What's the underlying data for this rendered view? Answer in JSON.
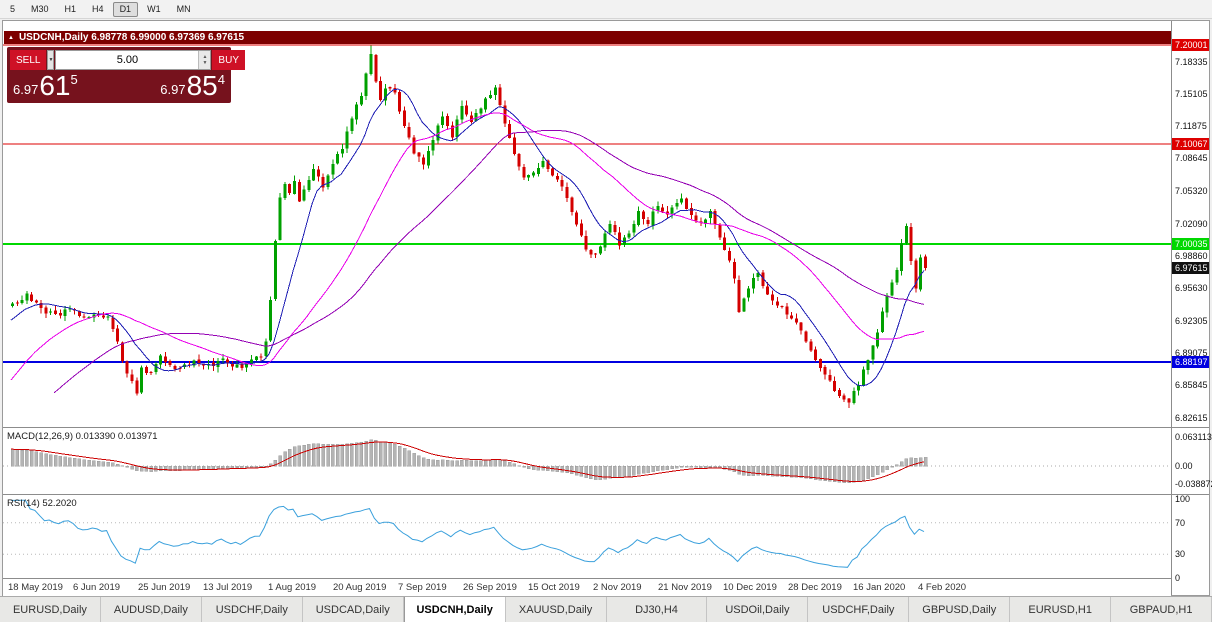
{
  "toolbar": {
    "timeframes": [
      "5",
      "M30",
      "H1",
      "H4",
      "D1",
      "W1",
      "MN"
    ],
    "active": "D1"
  },
  "chart": {
    "title_line": "USDCNH,Daily  6.98778 6.99000 6.97369 6.97615",
    "symbol": "USDCNH,Daily",
    "trade_panel": {
      "sell_label": "SELL",
      "buy_label": "BUY",
      "volume": "5.00",
      "sell_price": {
        "prefix": "6.97",
        "big": "61",
        "sup": "5"
      },
      "buy_price": {
        "prefix": "6.97",
        "big": "85",
        "sup": "4"
      }
    },
    "levels": [
      {
        "label": "7.20001",
        "value": 7.20001,
        "color": "#dd0000",
        "width": 1
      },
      {
        "label": "7.10067",
        "value": 7.10067,
        "color": "#dd0000",
        "width": 1
      },
      {
        "label": "7.00035",
        "value": 7.00035,
        "color": "#00d800",
        "width": 2
      },
      {
        "label": "6.88197",
        "value": 6.88197,
        "color": "#0000e0",
        "width": 2
      }
    ],
    "current_price": {
      "label": "6.97615",
      "value": 6.97615,
      "badge_color": "#101010"
    },
    "y_axis": [
      "7.18335",
      "7.15105",
      "7.11875",
      "7.08645",
      "7.05320",
      "7.02090",
      "6.98860",
      "6.95630",
      "6.92305",
      "6.89075",
      "6.85845",
      "6.82615"
    ],
    "x_axis": [
      "18 May 2019",
      "6 Jun 2019",
      "25 Jun 2019",
      "13 Jul 2019",
      "1 Aug 2019",
      "20 Aug 2019",
      "7 Sep 2019",
      "26 Sep 2019",
      "15 Oct 2019",
      "2 Nov 2019",
      "21 Nov 2019",
      "10 Dec 2019",
      "28 Dec 2019",
      "16 Jan 2020",
      "4 Feb 2020"
    ]
  },
  "macd": {
    "title": "MACD(12,26,9) 0.013390 0.013971",
    "axis": [
      "0.063113",
      "0.00",
      "-0.038872"
    ]
  },
  "rsi": {
    "title": "RSI(14) 52.2020",
    "axis": [
      "100",
      "70",
      "30",
      "0"
    ]
  },
  "tabs": {
    "items": [
      "EURUSD,Daily",
      "AUDUSD,Daily",
      "USDCHF,Daily",
      "USDCAD,Daily",
      "USDCNH,Daily",
      "XAUUSD,Daily",
      "DJ30,H4",
      "USDOil,Daily",
      "USDCHF,Daily",
      "GBPUSD,Daily",
      "EURUSD,H1",
      "GBPAUD,H1"
    ],
    "active_index": 4
  },
  "chart_data": {
    "type": "candlestick",
    "symbol": "USDCNH",
    "timeframe": "Daily",
    "ohlc_current": {
      "open": 6.98778,
      "high": 6.99,
      "low": 6.97369,
      "close": 6.97615
    },
    "bars_visible": 192,
    "prehistory_bars": 40,
    "noise": 0.003,
    "up_color": "#00a000",
    "down_color": "#d40000",
    "close_path_anchors": [
      [
        -40,
        6.725
      ],
      [
        -28,
        6.77
      ],
      [
        -16,
        6.862
      ],
      [
        -6,
        6.92
      ],
      [
        0,
        6.941
      ],
      [
        3,
        6.949
      ],
      [
        6,
        6.935
      ],
      [
        9,
        6.929
      ],
      [
        12,
        6.936
      ],
      [
        14,
        6.926
      ],
      [
        17,
        6.931
      ],
      [
        20,
        6.927
      ],
      [
        22,
        6.903
      ],
      [
        24,
        6.869
      ],
      [
        26,
        6.852
      ],
      [
        27,
        6.876
      ],
      [
        29,
        6.871
      ],
      [
        31,
        6.886
      ],
      [
        34,
        6.877
      ],
      [
        38,
        6.883
      ],
      [
        41,
        6.878
      ],
      [
        44,
        6.884
      ],
      [
        47,
        6.877
      ],
      [
        50,
        6.883
      ],
      [
        52,
        6.889
      ],
      [
        53,
        6.902
      ],
      [
        54,
        6.944
      ],
      [
        55,
        7.002
      ],
      [
        56,
        7.046
      ],
      [
        57,
        7.061
      ],
      [
        58,
        7.049
      ],
      [
        59,
        7.063
      ],
      [
        60,
        7.041
      ],
      [
        61,
        7.056
      ],
      [
        63,
        7.073
      ],
      [
        65,
        7.058
      ],
      [
        67,
        7.081
      ],
      [
        69,
        7.096
      ],
      [
        71,
        7.126
      ],
      [
        73,
        7.149
      ],
      [
        75,
        7.189
      ],
      [
        76,
        7.166
      ],
      [
        77,
        7.146
      ],
      [
        78,
        7.159
      ],
      [
        80,
        7.151
      ],
      [
        82,
        7.119
      ],
      [
        84,
        7.092
      ],
      [
        86,
        7.079
      ],
      [
        88,
        7.106
      ],
      [
        90,
        7.129
      ],
      [
        92,
        7.109
      ],
      [
        94,
        7.136
      ],
      [
        96,
        7.124
      ],
      [
        98,
        7.139
      ],
      [
        100,
        7.151
      ],
      [
        101,
        7.156
      ],
      [
        103,
        7.119
      ],
      [
        105,
        7.089
      ],
      [
        107,
        7.069
      ],
      [
        109,
        7.073
      ],
      [
        111,
        7.083
      ],
      [
        113,
        7.071
      ],
      [
        115,
        7.057
      ],
      [
        117,
        7.031
      ],
      [
        119,
        7.007
      ],
      [
        121,
        6.988
      ],
      [
        123,
        6.997
      ],
      [
        125,
        7.021
      ],
      [
        127,
        7.001
      ],
      [
        129,
        7.011
      ],
      [
        131,
        7.031
      ],
      [
        133,
        7.021
      ],
      [
        135,
        7.041
      ],
      [
        137,
        7.031
      ],
      [
        140,
        7.047
      ],
      [
        142,
        7.029
      ],
      [
        144,
        7.021
      ],
      [
        146,
        7.031
      ],
      [
        148,
        7.007
      ],
      [
        150,
        6.984
      ],
      [
        151,
        6.968
      ],
      [
        152,
        6.933
      ],
      [
        154,
        6.957
      ],
      [
        156,
        6.971
      ],
      [
        158,
        6.951
      ],
      [
        160,
        6.941
      ],
      [
        162,
        6.931
      ],
      [
        164,
        6.921
      ],
      [
        166,
        6.904
      ],
      [
        168,
        6.884
      ],
      [
        170,
        6.867
      ],
      [
        172,
        6.854
      ],
      [
        175,
        6.841
      ],
      [
        177,
        6.861
      ],
      [
        179,
        6.884
      ],
      [
        181,
        6.914
      ],
      [
        183,
        6.949
      ],
      [
        184,
        6.963
      ],
      [
        185,
        6.976
      ],
      [
        186,
        7.001
      ],
      [
        187,
        7.016
      ],
      [
        188,
        6.986
      ],
      [
        189,
        6.958
      ],
      [
        190,
        6.989
      ],
      [
        191,
        6.97615
      ]
    ],
    "extreme_high": {
      "bar": 75,
      "price": 7.1993
    },
    "extreme_low": {
      "bar": 175,
      "price": 6.836
    },
    "moving_averages": [
      {
        "period": 10,
        "color": "#1e1eb4"
      },
      {
        "period": 30,
        "color": "#ea00ea"
      },
      {
        "period": 50,
        "color": "#9400b4"
      }
    ],
    "macd_params": {
      "fast": 12,
      "slow": 26,
      "signal": 9,
      "signal_color": "#cc0000",
      "histogram_color": "#b4b4b4"
    },
    "rsi_params": {
      "period": 14,
      "overbought": 70,
      "oversold": 30,
      "line_color": "#3aa0dc"
    }
  }
}
